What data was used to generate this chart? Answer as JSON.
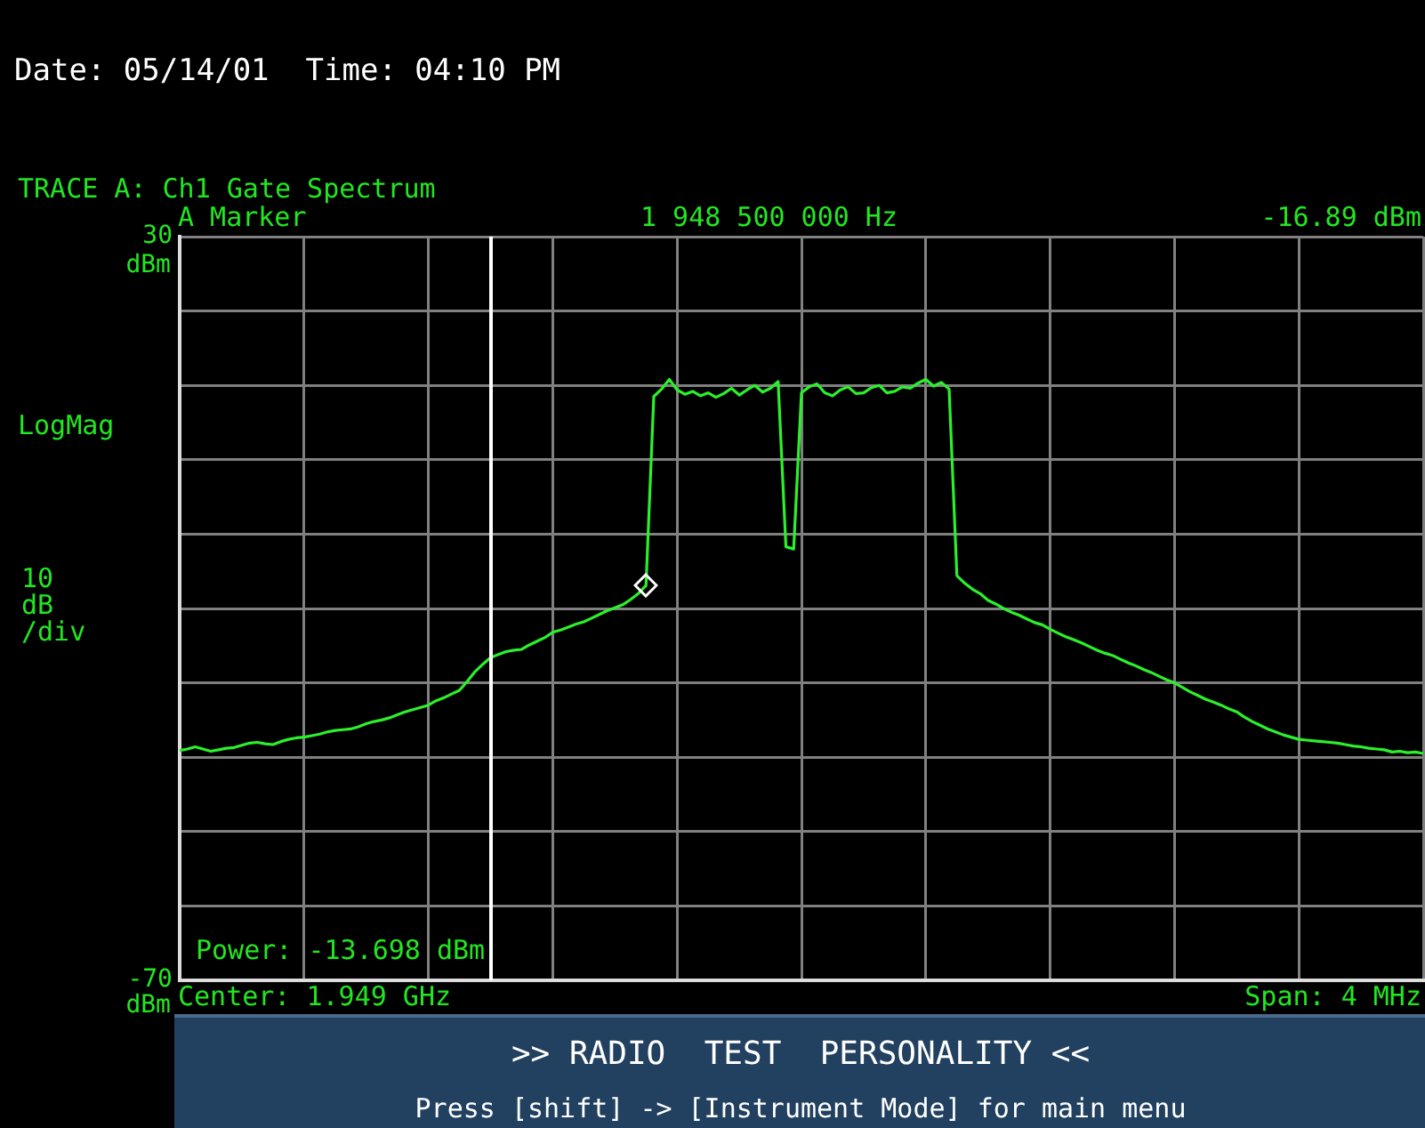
{
  "chart_data": {
    "type": "line",
    "title": "TRACE A: Ch1 Gate Spectrum",
    "subtitle": "Date: 05/14/01  Time: 04:10 PM",
    "ylabel": "LogMag",
    "xlabel": "Center: 1.949 GHz",
    "annotations": [
      "A Marker",
      "1 948 500 000 Hz",
      "-16.89 dBm",
      "10 dB /div",
      "Power: -13.698 dBm",
      "Span: 4 MHz",
      ">> RADIO  TEST  PERSONALITY <<",
      "Press [shift] -> [Instrument Mode] for main menu",
      "dBm",
      "dBm"
    ],
    "categories": [
      null,
      null,
      null,
      null,
      null,
      null,
      null,
      null,
      null,
      null,
      null,
      null,
      null,
      null,
      null,
      null,
      null,
      null,
      null,
      null,
      null,
      null,
      null,
      null,
      null,
      null,
      null,
      null,
      null,
      null,
      null,
      null,
      null,
      null,
      null,
      null,
      null,
      null,
      null,
      null,
      null,
      null,
      null,
      null,
      null,
      null,
      null,
      null,
      null,
      null,
      null,
      null,
      null,
      null,
      null,
      null,
      null,
      null,
      null,
      null,
      null,
      null,
      null,
      null,
      null,
      null,
      null,
      null,
      null,
      null,
      null,
      null,
      null,
      null,
      null,
      null,
      null,
      null,
      null,
      null,
      null,
      null,
      null,
      null,
      null,
      null,
      null,
      null,
      null,
      null,
      null,
      null,
      null,
      null,
      null,
      null,
      null,
      null,
      null,
      null,
      null,
      null,
      null,
      null,
      null,
      null,
      null,
      null,
      null,
      null,
      null,
      null,
      null,
      null,
      null,
      null,
      null,
      null,
      null,
      null,
      null,
      null,
      null,
      null,
      null,
      null,
      null,
      null,
      null,
      null,
      null,
      null,
      null,
      null,
      null,
      null,
      null,
      null,
      null,
      null,
      null,
      null,
      null,
      null,
      null,
      null,
      null,
      null,
      null,
      null,
      null,
      null,
      null,
      null,
      null,
      null,
      null,
      null,
      null,
      null,
      null
    ],
    "ylim": [
      -70,
      30
    ],
    "yticks": [
      30,
      {
        "value": 20,
        "label": null
      },
      {
        "value": 10,
        "label": null
      },
      {
        "value": 0,
        "label": null
      },
      {
        "value": -10,
        "label": null
      },
      {
        "value": -20,
        "label": null
      },
      {
        "value": -30,
        "label": null
      },
      {
        "value": -40,
        "label": null
      },
      {
        "value": -50,
        "label": null
      },
      {
        "value": -60,
        "label": null
      },
      -70
    ],
    "tick_labels": "y",
    "grid": true,
    "legend": false,
    "series": [
      {
        "color": "#2bf02b",
        "marker": "none",
        "values": [
          -39.1,
          -38.9,
          -38.6,
          -38.9,
          -39.2,
          -39.0,
          -38.8,
          -38.7,
          -38.4,
          -38.1,
          -38.0,
          -38.2,
          -38.3,
          -37.9,
          -37.6,
          -37.4,
          -37.3,
          -37.1,
          -36.9,
          -36.6,
          -36.4,
          -36.3,
          -36.2,
          -35.9,
          -35.5,
          -35.2,
          -35.0,
          -34.7,
          -34.3,
          -33.9,
          -33.6,
          -33.3,
          -33.0,
          -32.4,
          -32.0,
          -31.5,
          -31.0,
          -29.8,
          -28.5,
          -27.5,
          -26.6,
          -26.2,
          -25.8,
          -25.6,
          -25.5,
          -24.9,
          -24.4,
          -23.9,
          -23.2,
          -22.9,
          -22.5,
          -22.1,
          -21.8,
          -21.3,
          -20.8,
          -20.3,
          -19.9,
          -19.5,
          -18.8,
          -18.0,
          -16.9,
          8.5,
          9.5,
          10.8,
          9.4,
          8.8,
          9.2,
          8.6,
          9.0,
          8.4,
          8.9,
          9.6,
          8.7,
          9.4,
          10.0,
          9.1,
          9.6,
          10.5,
          -11.7,
          -12.0,
          9.0,
          9.8,
          10.2,
          9.0,
          8.6,
          9.4,
          9.8,
          8.9,
          9.0,
          9.7,
          10.0,
          9.0,
          9.2,
          9.8,
          9.6,
          10.3,
          10.8,
          9.9,
          10.4,
          9.5,
          -15.6,
          -16.6,
          -17.4,
          -18.0,
          -18.9,
          -19.4,
          -20.0,
          -20.5,
          -20.9,
          -21.4,
          -21.9,
          -22.2,
          -22.8,
          -23.3,
          -23.8,
          -24.2,
          -24.6,
          -25.1,
          -25.6,
          -26.0,
          -26.3,
          -26.8,
          -27.3,
          -27.7,
          -28.2,
          -28.6,
          -29.1,
          -29.6,
          -30.0,
          -30.6,
          -31.2,
          -31.7,
          -32.2,
          -32.6,
          -33.0,
          -33.5,
          -33.9,
          -34.6,
          -35.2,
          -35.7,
          -36.2,
          -36.6,
          -37.0,
          -37.3,
          -37.6,
          -37.7,
          -37.8,
          -37.9,
          -38.0,
          -38.1,
          -38.3,
          -38.5,
          -38.6,
          -38.8,
          -38.9,
          -39.0,
          -39.3,
          -39.2,
          -39.4,
          -39.3,
          -39.5
        ]
      }
    ]
  }
}
